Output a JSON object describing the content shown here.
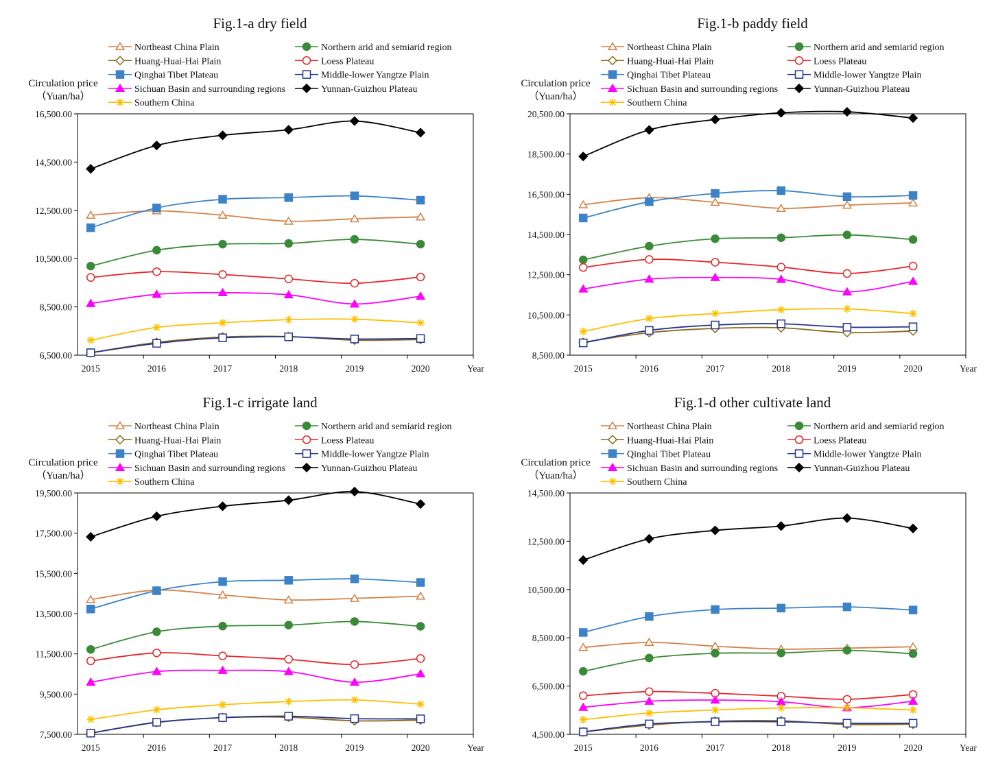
{
  "legend_order": [
    "Northeast China Plain",
    "Northern arid and semiarid region",
    "Huang-Huai-Hai Plain",
    "Loess Plateau",
    "Qinghai Tibet Plateau",
    "Middle-lower Yangtze Plain",
    "Sichuan Basin and surrounding regions",
    "Yunnan-Guizhou Plateau",
    "Southern China"
  ],
  "series_style": {
    "Northeast China Plain": {
      "color": "#d4824a",
      "marker": "triangle-open"
    },
    "Northern arid and semiarid region": {
      "color": "#3a8a3a",
      "marker": "circle-filled"
    },
    "Huang-Huai-Hai Plain": {
      "color": "#8a6a1a",
      "marker": "diamond-open"
    },
    "Loess Plateau": {
      "color": "#e8262a",
      "marker": "circle-open"
    },
    "Qinghai Tibet Plateau": {
      "color": "#3d82c4",
      "marker": "square-filled"
    },
    "Middle-lower Yangtze Plain": {
      "color": "#27348b",
      "marker": "square-open"
    },
    "Sichuan Basin and surrounding regions": {
      "color": "#ff00ff",
      "marker": "triangle-filled"
    },
    "Yunnan-Guizhou Plateau": {
      "color": "#000000",
      "marker": "diamond-filled"
    },
    "Southern China": {
      "color": "#ffbf00",
      "marker": "star"
    }
  },
  "chart_data": [
    {
      "type": "line",
      "title": "Fig.1-a dry field",
      "ylabel_line1": "Circulation price",
      "ylabel_line2": "（Yuan/ha）",
      "xlabel": "Year",
      "x": [
        "2015",
        "2016",
        "2017",
        "2018",
        "2019",
        "2020"
      ],
      "ylim": [
        6500,
        16500
      ],
      "yticks": [
        "6,500.00",
        "8,500.00",
        "10,500.00",
        "12,500.00",
        "14,500.00",
        "16,500.00"
      ],
      "series": [
        {
          "name": "Northeast China Plain",
          "values": [
            12300,
            12480,
            12300,
            12050,
            12150,
            12230
          ]
        },
        {
          "name": "Northern arid and semiarid region",
          "values": [
            10190,
            10850,
            11100,
            11130,
            11300,
            11100
          ]
        },
        {
          "name": "Huang-Huai-Hai Plain",
          "values": [
            6600,
            7030,
            7250,
            7270,
            7120,
            7150
          ]
        },
        {
          "name": "Loess Plateau",
          "values": [
            9720,
            9960,
            9840,
            9660,
            9480,
            9740
          ]
        },
        {
          "name": "Qinghai Tibet Plateau",
          "values": [
            11780,
            12600,
            12960,
            13030,
            13100,
            12920
          ]
        },
        {
          "name": "Middle-lower Yangtze Plain",
          "values": [
            6600,
            6990,
            7220,
            7260,
            7170,
            7190
          ]
        },
        {
          "name": "Sichuan Basin and surrounding regions",
          "values": [
            8640,
            9020,
            9090,
            9000,
            8620,
            8940
          ]
        },
        {
          "name": "Yunnan-Guizhou Plateau",
          "values": [
            14220,
            15190,
            15610,
            15840,
            16200,
            15720
          ]
        },
        {
          "name": "Southern China",
          "values": [
            7120,
            7650,
            7840,
            7970,
            7990,
            7840
          ]
        }
      ]
    },
    {
      "type": "line",
      "title": "Fig.1-b paddy field",
      "ylabel_line1": "Circulation price",
      "ylabel_line2": "（Yuan/ha）",
      "xlabel": "Year",
      "x": [
        "2015",
        "2016",
        "2017",
        "2018",
        "2019",
        "2020"
      ],
      "ylim": [
        8500,
        20500
      ],
      "yticks": [
        "8,500.00",
        "10,500.00",
        "12,500.00",
        "14,500.00",
        "16,500.00",
        "18,500.00",
        "20,500.00"
      ],
      "series": [
        {
          "name": "Northeast China Plain",
          "values": [
            15980,
            16330,
            16100,
            15800,
            15960,
            16070
          ]
        },
        {
          "name": "Northern arid and semiarid region",
          "values": [
            13240,
            13920,
            14290,
            14340,
            14480,
            14250
          ]
        },
        {
          "name": "Huang-Huai-Hai Plain",
          "values": [
            9140,
            9620,
            9830,
            9860,
            9620,
            9700
          ]
        },
        {
          "name": "Loess Plateau",
          "values": [
            12860,
            13260,
            13120,
            12880,
            12560,
            12930
          ]
        },
        {
          "name": "Qinghai Tibet Plateau",
          "values": [
            15320,
            16130,
            16540,
            16680,
            16380,
            16440
          ]
        },
        {
          "name": "Middle-lower Yangtze Plain",
          "values": [
            9110,
            9730,
            10000,
            10060,
            9890,
            9910
          ]
        },
        {
          "name": "Sichuan Basin and surrounding regions",
          "values": [
            11790,
            12280,
            12360,
            12270,
            11650,
            12170
          ]
        },
        {
          "name": "Yunnan-Guizhou Plateau",
          "values": [
            18380,
            19700,
            20220,
            20550,
            20600,
            20290
          ]
        },
        {
          "name": "Southern China",
          "values": [
            9680,
            10320,
            10570,
            10760,
            10800,
            10570
          ]
        }
      ]
    },
    {
      "type": "line",
      "title": "Fig.1-c irrigate land",
      "ylabel_line1": "Circulation price",
      "ylabel_line2": "（Yuan/ha）",
      "xlabel": "Year",
      "x": [
        "2015",
        "2016",
        "2017",
        "2018",
        "2019",
        "2020"
      ],
      "ylim": [
        7500,
        19500
      ],
      "yticks": [
        "7,500.00",
        "9,500.00",
        "11,500.00",
        "13,500.00",
        "15,500.00",
        "17,500.00",
        "19,500.00"
      ],
      "series": [
        {
          "name": "Northeast China Plain",
          "values": [
            14200,
            14670,
            14430,
            14180,
            14260,
            14370
          ]
        },
        {
          "name": "Northern arid and semiarid region",
          "values": [
            11720,
            12600,
            12880,
            12930,
            13110,
            12870
          ]
        },
        {
          "name": "Huang-Huai-Hai Plain",
          "values": [
            7560,
            8090,
            8330,
            8350,
            8170,
            8210
          ]
        },
        {
          "name": "Loess Plateau",
          "values": [
            11150,
            11550,
            11400,
            11230,
            10970,
            11270
          ]
        },
        {
          "name": "Qinghai Tibet Plateau",
          "values": [
            13730,
            14640,
            15090,
            15160,
            15230,
            15050
          ]
        },
        {
          "name": "Middle-lower Yangtze Plain",
          "values": [
            7560,
            8100,
            8330,
            8400,
            8280,
            8270
          ]
        },
        {
          "name": "Sichuan Basin and surrounding regions",
          "values": [
            10090,
            10620,
            10680,
            10620,
            10090,
            10510
          ]
        },
        {
          "name": "Yunnan-Guizhou Plateau",
          "values": [
            17320,
            18340,
            18840,
            19140,
            19570,
            18950
          ]
        },
        {
          "name": "Southern China",
          "values": [
            8240,
            8720,
            8970,
            9130,
            9210,
            9000
          ]
        }
      ]
    },
    {
      "type": "line",
      "title": "Fig.1-d other cultivate land",
      "ylabel_line1": "Circulation price",
      "ylabel_line2": "（Yuan/ha）",
      "xlabel": "Year",
      "x": [
        "2015",
        "2016",
        "2017",
        "2018",
        "2019",
        "2020"
      ],
      "ylim": [
        4500,
        14500
      ],
      "yticks": [
        "4,500.00",
        "6,500.00",
        "8,500.00",
        "10,500.00",
        "12,500.00",
        "14,500.00"
      ],
      "series": [
        {
          "name": "Northeast China Plain",
          "values": [
            8100,
            8310,
            8150,
            8030,
            8070,
            8130
          ]
        },
        {
          "name": "Northern arid and semiarid region",
          "values": [
            7110,
            7660,
            7860,
            7870,
            7980,
            7840
          ]
        },
        {
          "name": "Huang-Huai-Hai Plain",
          "values": [
            4600,
            4880,
            5040,
            5060,
            4910,
            4920
          ]
        },
        {
          "name": "Loess Plateau",
          "values": [
            6100,
            6270,
            6200,
            6080,
            5950,
            6150
          ]
        },
        {
          "name": "Qinghai Tibet Plateau",
          "values": [
            8720,
            9380,
            9670,
            9730,
            9780,
            9650
          ]
        },
        {
          "name": "Middle-lower Yangtze Plain",
          "values": [
            4600,
            4930,
            5020,
            5020,
            4960,
            4960
          ]
        },
        {
          "name": "Sichuan Basin and surrounding regions",
          "values": [
            5620,
            5870,
            5920,
            5850,
            5600,
            5870
          ]
        },
        {
          "name": "Yunnan-Guizhou Plateau",
          "values": [
            11720,
            12600,
            12950,
            13130,
            13460,
            13030
          ]
        },
        {
          "name": "Southern China",
          "values": [
            5110,
            5380,
            5510,
            5590,
            5600,
            5510
          ]
        }
      ]
    }
  ]
}
